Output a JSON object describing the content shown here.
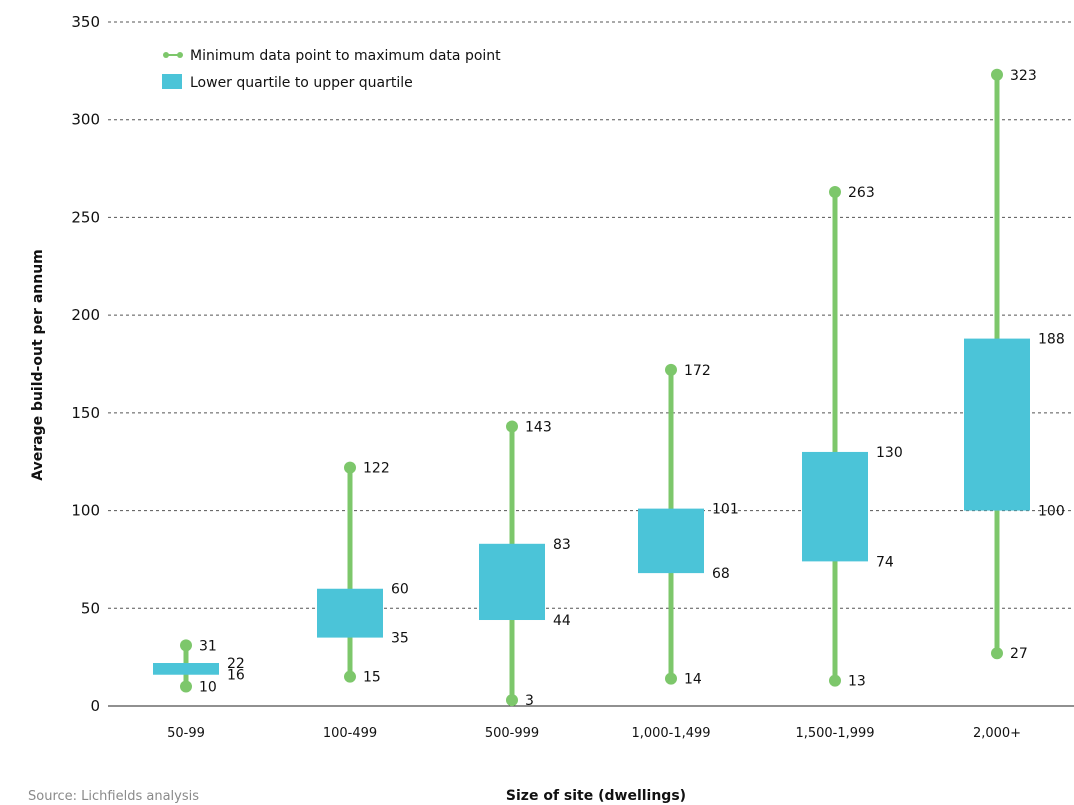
{
  "chart_data": {
    "type": "range-bar",
    "xlabel": "Size of site (dwellings)",
    "ylabel": "Average build-out per annum",
    "ylim": [
      0,
      350
    ],
    "yticks": [
      0,
      50,
      100,
      150,
      200,
      250,
      300,
      350
    ],
    "grid": true,
    "legend_position": "top-left",
    "legend": {
      "range_label": "Minimum data point to maximum data point",
      "box_label": "Lower quartile to upper quartile"
    },
    "source": "Source: Lichfields analysis",
    "categories": [
      "50-99",
      "100-499",
      "500-999",
      "1,000-1,499",
      "1,500-1,999",
      "2,000+"
    ],
    "min": [
      10,
      15,
      3,
      14,
      13,
      27
    ],
    "max": [
      31,
      122,
      143,
      172,
      263,
      323
    ],
    "q1": [
      16,
      35,
      44,
      68,
      74,
      100
    ],
    "q3": [
      22,
      60,
      83,
      101,
      130,
      188
    ],
    "colors": {
      "range": "#7dc76b",
      "box": "#4bc4d8",
      "grid": "#555555"
    }
  }
}
